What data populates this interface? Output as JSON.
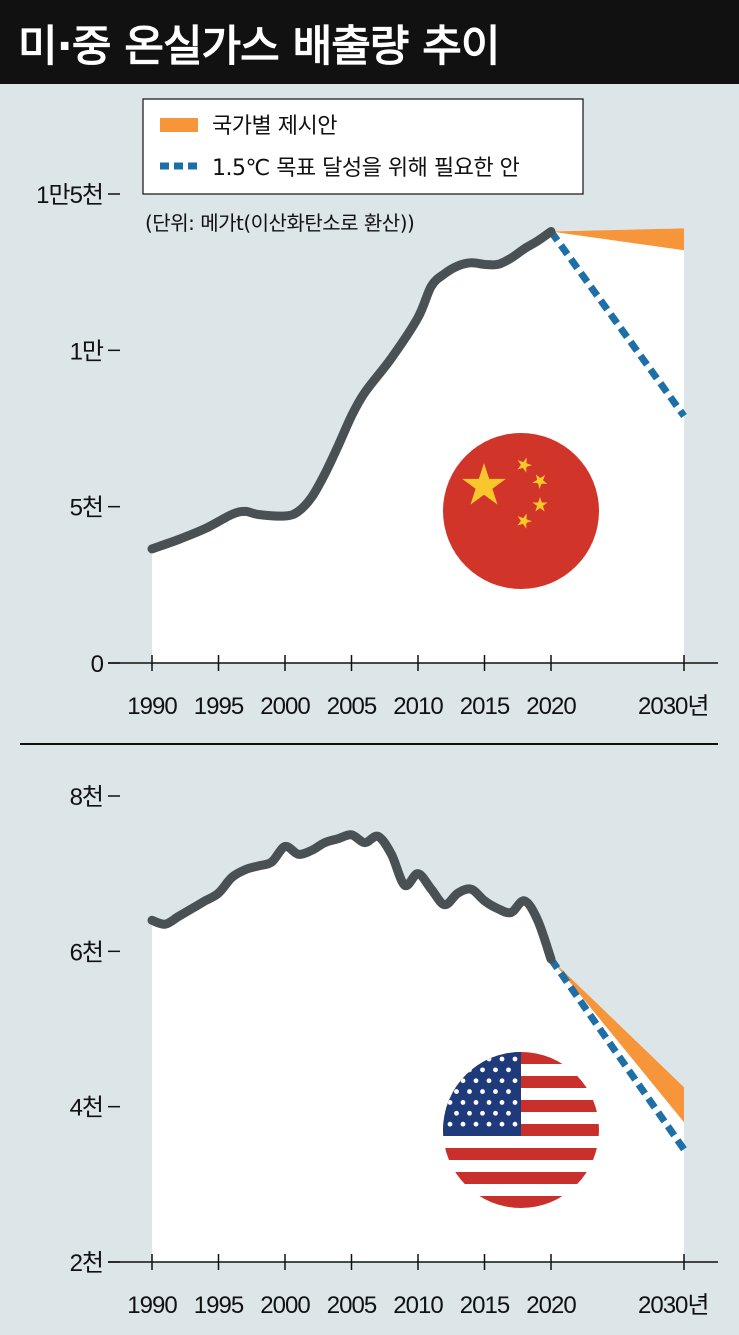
{
  "title": "미·중 온실가스 배출량 추이",
  "legend": {
    "national": "국가별 제시안",
    "target": "1.5℃ 목표 달성을 위해 필요한 안"
  },
  "unit_note": "(단위: 메가t(이산화탄소로 환산))",
  "colors": {
    "line": "#4a5154",
    "national": "#f7953a",
    "target": "#1e6fa8",
    "background": "#dce5e8",
    "plot": "#ffffff",
    "china_red": "#d1352a",
    "china_star": "#f7c72b",
    "us_red": "#c9302c",
    "us_blue": "#1e3a7a"
  },
  "icons": {
    "china_flag": "china-flag-icon",
    "us_flag": "us-flag-icon"
  },
  "chart_data": [
    {
      "type": "line",
      "country": "China",
      "yticks": [
        {
          "value": 15000,
          "label": "1만5천"
        },
        {
          "value": 10000,
          "label": "1만"
        },
        {
          "value": 5000,
          "label": "5천"
        },
        {
          "value": 0,
          "label": "0"
        }
      ],
      "xticks": [
        {
          "value": 1990,
          "label": "1990"
        },
        {
          "value": 1995,
          "label": "1995"
        },
        {
          "value": 2000,
          "label": "2000"
        },
        {
          "value": 2005,
          "label": "2005"
        },
        {
          "value": 2010,
          "label": "2010"
        },
        {
          "value": 2015,
          "label": "2015"
        },
        {
          "value": 2020,
          "label": "2020"
        },
        {
          "value": 2030,
          "label": "2030년"
        }
      ],
      "ylim": [
        0,
        15000
      ],
      "xlim": [
        1990,
        2030
      ],
      "historical": {
        "x": [
          1990,
          1992,
          1994,
          1996,
          1997,
          1998,
          2000,
          2001,
          2002,
          2003,
          2004,
          2005,
          2006,
          2008,
          2010,
          2011,
          2012,
          2013,
          2014,
          2015,
          2016,
          2017,
          2018,
          2019,
          2020
        ],
        "y": [
          3650,
          3950,
          4300,
          4750,
          4850,
          4750,
          4700,
          4850,
          5300,
          6050,
          6950,
          7900,
          8650,
          9750,
          11050,
          12050,
          12450,
          12700,
          12800,
          12750,
          12750,
          12950,
          13250,
          13500,
          13800
        ]
      },
      "national_plan": {
        "x": [
          2020,
          2030
        ],
        "y_low": 13800,
        "y_high": 13800,
        "y2030_low": 13200,
        "y2030_high": 13900
      },
      "target_1_5C": {
        "x": [
          2020,
          2030
        ],
        "y": [
          13800,
          7900
        ]
      }
    },
    {
      "type": "line",
      "country": "USA",
      "yticks": [
        {
          "value": 8000,
          "label": "8천"
        },
        {
          "value": 6000,
          "label": "6천"
        },
        {
          "value": 4000,
          "label": "4천"
        },
        {
          "value": 2000,
          "label": "2천"
        }
      ],
      "xticks": [
        {
          "value": 1990,
          "label": "1990"
        },
        {
          "value": 1995,
          "label": "1995"
        },
        {
          "value": 2000,
          "label": "2000"
        },
        {
          "value": 2005,
          "label": "2005"
        },
        {
          "value": 2010,
          "label": "2010"
        },
        {
          "value": 2015,
          "label": "2015"
        },
        {
          "value": 2020,
          "label": "2020"
        },
        {
          "value": 2030,
          "label": "2030년"
        }
      ],
      "ylim": [
        2000,
        8000
      ],
      "xlim": [
        1990,
        2030
      ],
      "historical": {
        "x": [
          1990,
          1991,
          1992,
          1993,
          1994,
          1995,
          1996,
          1997,
          1998,
          1999,
          2000,
          2001,
          2002,
          2003,
          2004,
          2005,
          2006,
          2007,
          2008,
          2009,
          2010,
          2011,
          2012,
          2013,
          2014,
          2015,
          2016,
          2017,
          2018,
          2019,
          2020
        ],
        "y": [
          6400,
          6350,
          6450,
          6550,
          6650,
          6750,
          6950,
          7050,
          7100,
          7150,
          7350,
          7250,
          7300,
          7400,
          7450,
          7500,
          7400,
          7480,
          7250,
          6850,
          7000,
          6800,
          6600,
          6750,
          6800,
          6650,
          6550,
          6500,
          6650,
          6400,
          5900
        ]
      },
      "national_plan": {
        "x": [
          2020,
          2030
        ],
        "y2020": 5900,
        "y2030_low": 3800,
        "y2030_high": 4250
      },
      "target_1_5C": {
        "x": [
          2020,
          2030
        ],
        "y": [
          5900,
          3450
        ]
      }
    }
  ]
}
